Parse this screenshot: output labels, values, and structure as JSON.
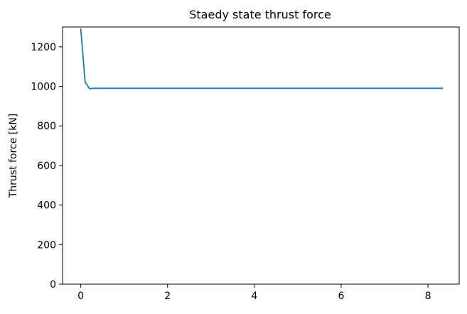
{
  "chart_data": {
    "type": "line",
    "title": "Staedy state thrust force",
    "xlabel": "",
    "ylabel": "Thrust force [kN]",
    "xlim": [
      -0.42,
      8.72
    ],
    "ylim": [
      0,
      1300
    ],
    "xticks": [
      0,
      2,
      4,
      6,
      8
    ],
    "yticks": [
      0,
      200,
      400,
      600,
      800,
      1000,
      1200
    ],
    "grid": false,
    "series": [
      {
        "color": "#1f77b4",
        "x": [
          0.0,
          0.1,
          0.2,
          0.3,
          0.5,
          1.0,
          2.0,
          3.0,
          4.0,
          5.0,
          6.0,
          7.0,
          8.0,
          8.33
        ],
        "y": [
          1290,
          1022,
          988,
          990,
          990,
          990,
          990,
          990,
          990,
          990,
          990,
          990,
          990,
          990
        ]
      }
    ]
  }
}
